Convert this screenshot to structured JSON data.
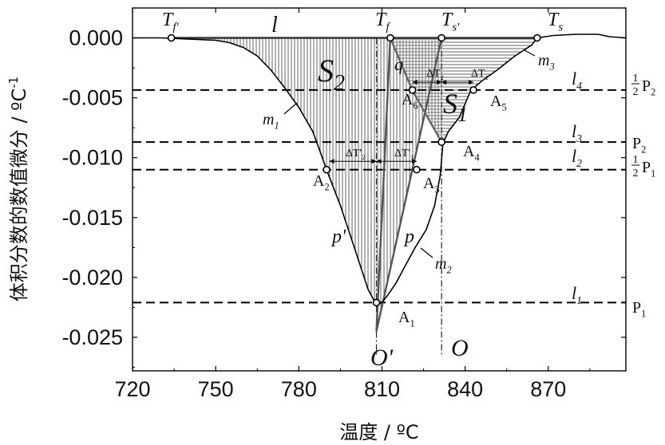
{
  "chart_data": {
    "type": "line",
    "xlabel": "温度 / ºC",
    "ylabel": "体积分数的数值微分 / ºC",
    "ylabel_superscript": "-1",
    "xlim": [
      720,
      898
    ],
    "ylim": [
      -0.0278,
      0.0025
    ],
    "xticks": [
      720,
      750,
      780,
      810,
      840,
      870
    ],
    "xtick_labels": [
      "720",
      "750",
      "780",
      "810",
      "840",
      "870"
    ],
    "yticks": [
      0.0,
      -0.005,
      -0.01,
      -0.015,
      -0.02,
      -0.025
    ],
    "ytick_labels": [
      "0.000",
      "-0.005",
      "-0.010",
      "-0.015",
      "-0.020",
      "-0.025"
    ],
    "series": [
      {
        "name": "",
        "values": [
          [
            720,
            0
          ],
          [
            730,
            0
          ],
          [
            740,
            -0.0001
          ],
          [
            750,
            -0.0002
          ],
          [
            755,
            -0.0004
          ],
          [
            760,
            -0.0008
          ],
          [
            765,
            -0.0015
          ],
          [
            770,
            -0.0027
          ],
          [
            775,
            -0.0042
          ],
          [
            780,
            -0.0058
          ],
          [
            785,
            -0.0078
          ],
          [
            788,
            -0.0097
          ],
          [
            790,
            -0.011
          ],
          [
            795,
            -0.014
          ],
          [
            800,
            -0.0175
          ],
          [
            805,
            -0.021
          ],
          [
            808,
            -0.0223
          ],
          [
            810,
            -0.0221
          ],
          [
            812,
            -0.0215
          ],
          [
            815,
            -0.0205
          ],
          [
            818,
            -0.0192
          ],
          [
            822,
            -0.0175
          ],
          [
            826,
            -0.016
          ],
          [
            829,
            -0.014
          ],
          [
            831,
            -0.0115
          ],
          [
            832,
            -0.0088
          ],
          [
            834,
            -0.0078
          ],
          [
            838,
            -0.0066
          ],
          [
            842,
            -0.0044
          ],
          [
            846,
            -0.0036
          ],
          [
            852,
            -0.0026
          ],
          [
            858,
            -0.0015
          ],
          [
            864,
            -0.0006
          ],
          [
            866,
            0
          ],
          [
            872,
            0.0002
          ],
          [
            880,
            0.0003
          ],
          [
            888,
            0.0003
          ],
          [
            892,
            0.0001
          ],
          [
            898,
            0
          ]
        ]
      }
    ],
    "lines": {
      "l": 0.0,
      "l4": -0.00435,
      "l3": -0.0087,
      "l2": -0.011,
      "l1": -0.0221
    },
    "tangents": {
      "p_prime": [
        [
          813,
          0
        ],
        [
          808,
          -0.0245
        ]
      ],
      "p": [
        [
          808,
          -0.0245
        ],
        [
          831.5,
          0
        ]
      ],
      "q": [
        [
          813,
          0
        ],
        [
          821,
          -0.0044
        ]
      ],
      "q_lower": [
        [
          821,
          -0.0044
        ],
        [
          831.5,
          -0.0087
        ]
      ]
    },
    "vertical_refs": [
      808,
      831.5
    ],
    "points": [
      {
        "label": "T_f'",
        "x": 734,
        "y": 0
      },
      {
        "label": "T_f",
        "x": 813,
        "y": 0
      },
      {
        "label": "T_s'",
        "x": 831.5,
        "y": 0
      },
      {
        "label": "T_s",
        "x": 866,
        "y": 0
      },
      {
        "label": "A1",
        "x": 808,
        "y": -0.0221
      },
      {
        "label": "A2",
        "x": 790,
        "y": -0.011
      },
      {
        "label": "A3",
        "x": 822.5,
        "y": -0.011
      },
      {
        "label": "A4",
        "x": 831.5,
        "y": -0.0087
      },
      {
        "label": "A5",
        "x": 843,
        "y": -0.00435
      },
      {
        "label": "A6",
        "x": 821,
        "y": -0.00435
      }
    ],
    "annotations": {
      "tf_prime": "T",
      "tf_prime_sub": "f'",
      "tf": "T",
      "tf_sub": "f",
      "ts_prime": "T",
      "ts_prime_sub": "s'",
      "ts": "T",
      "ts_sub": "s",
      "l": "l",
      "l4": "l",
      "l4_sub": "4",
      "l3": "l",
      "l3_sub": "3",
      "l2": "l",
      "l2_sub": "2",
      "l1": "l",
      "l1_sub": "1",
      "S2": "S",
      "S2_sub": "2",
      "S1": "S",
      "S1_sub": "1",
      "q": "q",
      "p": "p",
      "p_prime": "p'",
      "m1": "m",
      "m1_sub": "1",
      "m2": "m",
      "m2_sub": "2",
      "m3": "m",
      "m3_sub": "3",
      "O": "O",
      "O_prime": "O'",
      "A1": "A",
      "A1_sub": "1",
      "A2": "A",
      "A2_sub": "2",
      "A3": "A",
      "A3_sub": "3",
      "A4": "A",
      "A4_sub": "4",
      "A5": "A",
      "A5_sub": "5",
      "A6": "A",
      "A6_sub": "6",
      "dT2_small": "ΔT",
      "dT2_small_sub": "2",
      "dT1_small": "ΔT",
      "dT1_small_sub": "1",
      "dT2_large": "ΔT'",
      "dT2_large_sub": "2",
      "dT1_large": "ΔT'",
      "dT1_large_sub": "1",
      "half_P2_num": "1",
      "half_P2_den": "2",
      "half_P2": "P",
      "half_P2_sub": "2",
      "P2": "P",
      "P2_sub": "2",
      "half_P1_num": "1",
      "half_P1_den": "2",
      "half_P1": "P",
      "half_P1_sub": "1",
      "P1": "P",
      "P1_sub": "1"
    }
  }
}
